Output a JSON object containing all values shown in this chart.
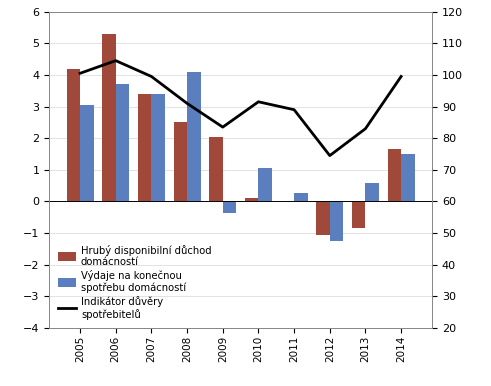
{
  "years": [
    2005,
    2006,
    2007,
    2008,
    2009,
    2010,
    2011,
    2012,
    2013,
    2014
  ],
  "hrub_duchod": [
    4.2,
    5.3,
    3.4,
    2.5,
    2.05,
    0.1,
    0.0,
    -1.05,
    -0.85,
    1.65
  ],
  "vydaje": [
    3.05,
    3.7,
    3.4,
    4.1,
    -0.35,
    1.05,
    0.28,
    -1.25,
    0.6,
    1.5
  ],
  "indikator": [
    100.5,
    104.5,
    99.5,
    91.0,
    83.5,
    91.5,
    89.0,
    74.5,
    83.0,
    99.5
  ],
  "bar_color_red": "#A0483A",
  "bar_color_blue": "#5B7FBE",
  "line_color": "#000000",
  "ylim_left": [
    -4,
    6
  ],
  "ylim_right": [
    20,
    120
  ],
  "yticks_left": [
    -4,
    -3,
    -2,
    -1,
    0,
    1,
    2,
    3,
    4,
    5,
    6
  ],
  "yticks_right": [
    20,
    30,
    40,
    50,
    60,
    70,
    80,
    90,
    100,
    110,
    120
  ],
  "legend_labels": [
    "Hrubý disponibilní důchod\ndomácností",
    "Výdaje na konečnou\nspotřebu domácností",
    "Indikátor důvěry\nspotřebitelů"
  ],
  "background_color": "#FFFFFF",
  "bar_width": 0.38
}
